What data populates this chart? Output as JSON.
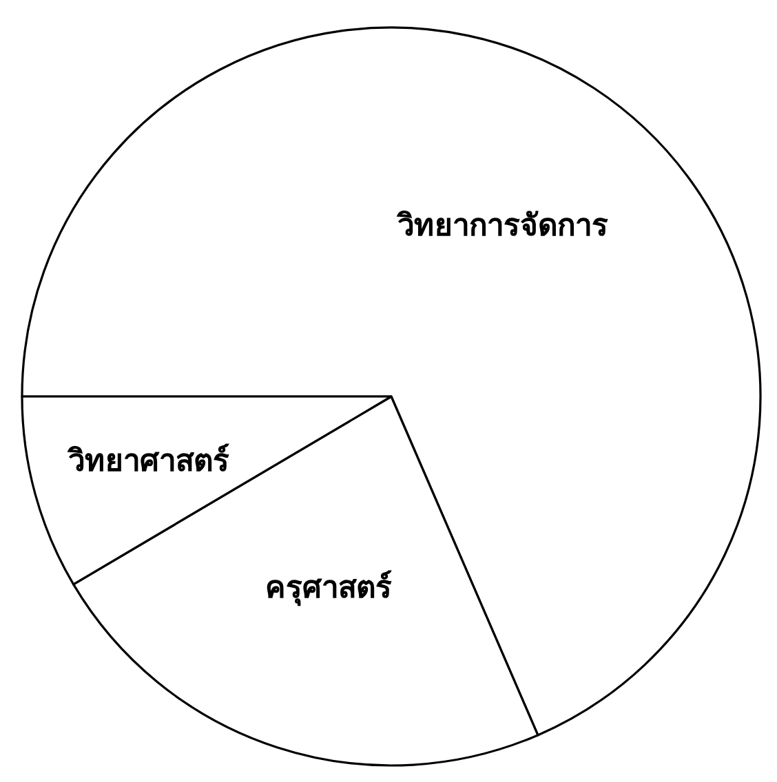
{
  "chart_data": {
    "type": "pie",
    "categories": [
      "วิทยาการจัดการ",
      "ครุศาสตร์",
      "วิทยาศาสตร์"
    ],
    "values": [
      68.5,
      23,
      8.5
    ],
    "colors": [
      "#ffffff",
      "#ffffff",
      "#ffffff"
    ]
  }
}
